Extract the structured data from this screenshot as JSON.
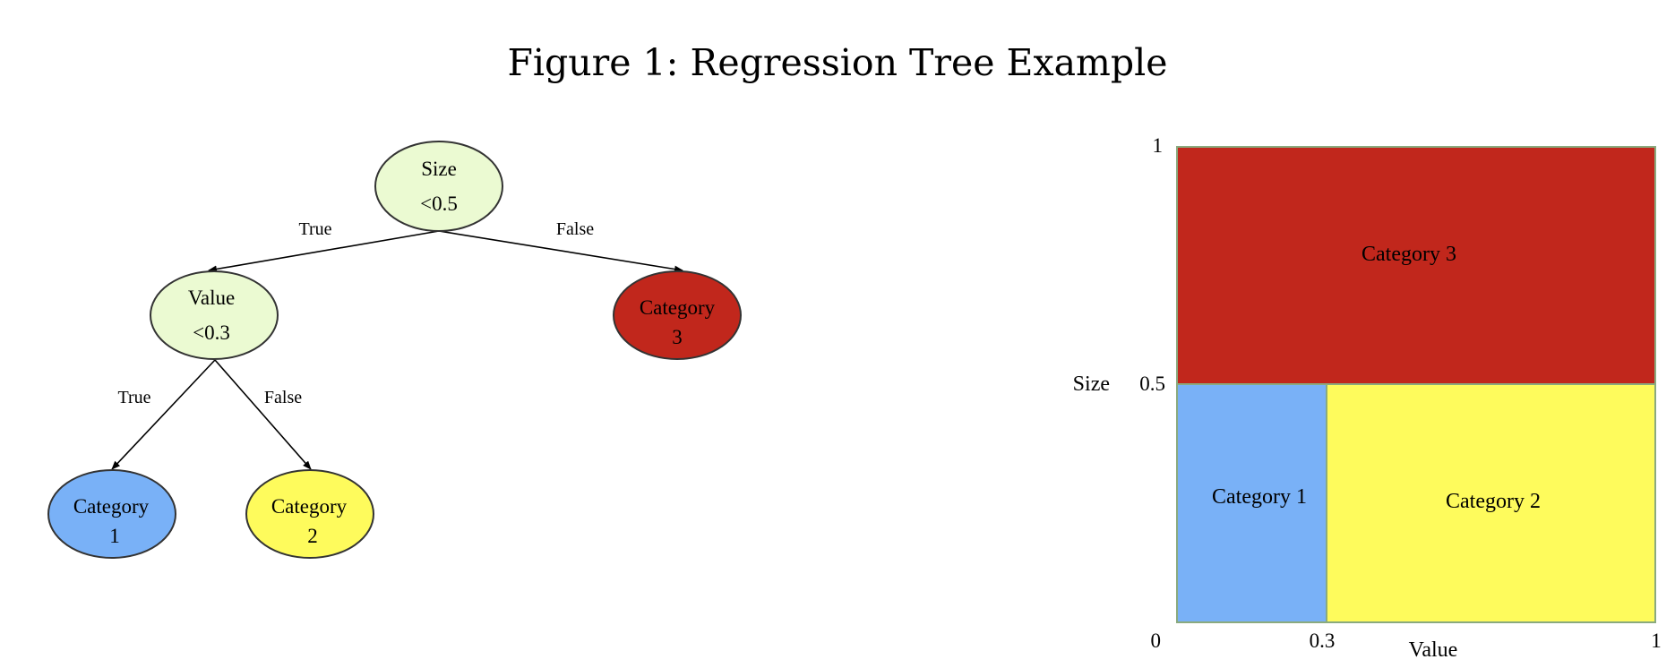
{
  "figure_title": "Figure 1: Regression Tree Example",
  "tree": {
    "root": {
      "line1": "Size",
      "line2": "<0.5",
      "fill": "#ebfad2"
    },
    "value_node": {
      "line1": "Value",
      "line2": "<0.3",
      "fill": "#ebfad2"
    },
    "leaf_category3": {
      "line1": "Category",
      "line2": "3",
      "fill": "#c1271c"
    },
    "leaf_category1": {
      "line1": "Category",
      "line2": "1",
      "fill": "#79b1f7"
    },
    "leaf_category2": {
      "line1": "Category",
      "line2": "2",
      "fill": "#fefb5c"
    },
    "edge_labels": {
      "root_true": "True",
      "root_false": "False",
      "value_true": "True",
      "value_false": "False"
    }
  },
  "partition": {
    "y_axis_label": "Size",
    "x_axis_label": "Value",
    "y_ticks": [
      "1",
      "0.5",
      "0"
    ],
    "x_ticks": [
      "0.3",
      "1"
    ],
    "regions": {
      "category3": {
        "label": "Category 3",
        "color": "#c1271c"
      },
      "category1": {
        "label": "Category 1",
        "color": "#79b1f7"
      },
      "category2": {
        "label": "Category 2",
        "color": "#fefb5c"
      }
    },
    "border_color": "#8aaa7e"
  }
}
